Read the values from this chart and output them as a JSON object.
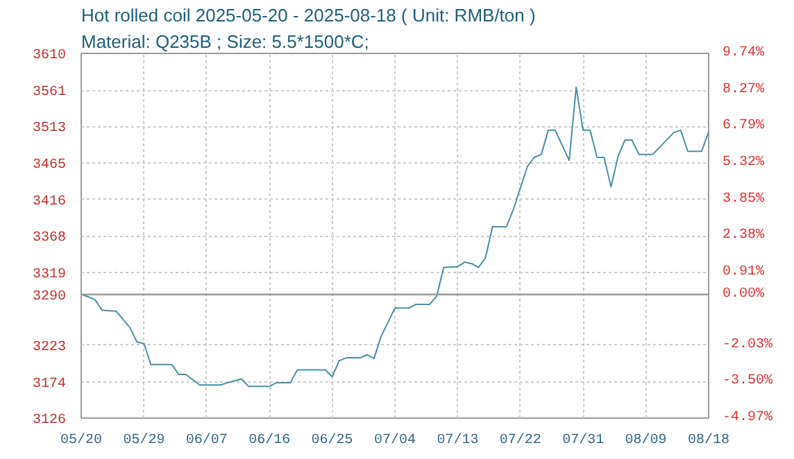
{
  "chart_data": {
    "type": "line",
    "title": "Hot rolled coil 2025-05-20 - 2025-08-18    ( Unit: RMB/ton )",
    "subtitle": "Material: Q235B ; Size: 5.5*1500*C;",
    "x": [
      "2025-05-20",
      "2025-05-21",
      "2025-05-22",
      "2025-05-23",
      "2025-05-25",
      "2025-05-27",
      "2025-05-28",
      "2025-05-29",
      "2025-05-30",
      "2025-06-02",
      "2025-06-03",
      "2025-06-04",
      "2025-06-06",
      "2025-06-09",
      "2025-06-10",
      "2025-06-12",
      "2025-06-13",
      "2025-06-16",
      "2025-06-17",
      "2025-06-19",
      "2025-06-20",
      "2025-06-24",
      "2025-06-25",
      "2025-06-26",
      "2025-06-27",
      "2025-06-29",
      "2025-06-30",
      "2025-07-01",
      "2025-07-02",
      "2025-07-04",
      "2025-07-06",
      "2025-07-07",
      "2025-07-09",
      "2025-07-10",
      "2025-07-11",
      "2025-07-13",
      "2025-07-14",
      "2025-07-15",
      "2025-07-16",
      "2025-07-17",
      "2025-07-18",
      "2025-07-20",
      "2025-07-21",
      "2025-07-23",
      "2025-07-24",
      "2025-07-25",
      "2025-07-26",
      "2025-07-27",
      "2025-07-29",
      "2025-07-30",
      "2025-07-31",
      "2025-08-01",
      "2025-08-02",
      "2025-08-03",
      "2025-08-04",
      "2025-08-05",
      "2025-08-06",
      "2025-08-07",
      "2025-08-08",
      "2025-08-10",
      "2025-08-13",
      "2025-08-14",
      "2025-08-15",
      "2025-08-17",
      "2025-08-18"
    ],
    "series": [
      {
        "color": "#4a8fa8",
        "values": [
          3290,
          3287,
          3283,
          3269,
          3268,
          3246,
          3227,
          3225,
          3197,
          3197,
          3184,
          3184,
          3170,
          3170,
          3173,
          3178,
          3168,
          3168,
          3173,
          3173,
          3190,
          3190,
          3181,
          3202,
          3206,
          3206,
          3210,
          3205,
          3234,
          3272,
          3272,
          3277,
          3277,
          3288,
          3326,
          3327,
          3333,
          3331,
          3326,
          3339,
          3380,
          3380,
          3403,
          3460,
          3472,
          3476,
          3508,
          3508,
          3468,
          3565,
          3508,
          3508,
          3472,
          3472,
          3433,
          3473,
          3495,
          3495,
          3476,
          3476,
          3505,
          3508,
          3480,
          3480,
          3506
        ]
      }
    ],
    "xlim": [
      "2025-05-20",
      "2025-08-18"
    ],
    "xticks": [
      {
        "value": "2025-05-20",
        "label": "05/20"
      },
      {
        "value": "2025-05-29",
        "label": "05/29"
      },
      {
        "value": "2025-06-07",
        "label": "06/07"
      },
      {
        "value": "2025-06-16",
        "label": "06/16"
      },
      {
        "value": "2025-06-25",
        "label": "06/25"
      },
      {
        "value": "2025-07-04",
        "label": "07/04"
      },
      {
        "value": "2025-07-13",
        "label": "07/13"
      },
      {
        "value": "2025-07-22",
        "label": "07/22"
      },
      {
        "value": "2025-07-31",
        "label": "07/31"
      },
      {
        "value": "2025-08-09",
        "label": "08/09"
      },
      {
        "value": "2025-08-18",
        "label": "08/18"
      }
    ],
    "ylim": [
      3126,
      3610
    ],
    "yticks": [
      3126,
      3174,
      3223,
      3290,
      3319,
      3368,
      3416,
      3465,
      3513,
      3561,
      3610
    ],
    "y2lim": [
      -4.97,
      9.74
    ],
    "y2ticks": [
      {
        "value": -4.97,
        "label": "-4.97%"
      },
      {
        "value": -3.5,
        "label": "-3.50%"
      },
      {
        "value": -2.03,
        "label": "-2.03%"
      },
      {
        "value": 0,
        "label": "0.00%"
      },
      {
        "value": 0.91,
        "label": "0.91%"
      },
      {
        "value": 2.38,
        "label": "2.38%"
      },
      {
        "value": 3.85,
        "label": "3.85%"
      },
      {
        "value": 5.32,
        "label": "5.32%"
      },
      {
        "value": 6.79,
        "label": "6.79%"
      },
      {
        "value": 8.27,
        "label": "8.27%"
      },
      {
        "value": 9.74,
        "label": "9.74%"
      }
    ],
    "ref_lines": [
      {
        "axis": "y",
        "value": 3290,
        "color": "#999999"
      }
    ],
    "grid": true,
    "marker": "none",
    "line_style": "solid"
  }
}
